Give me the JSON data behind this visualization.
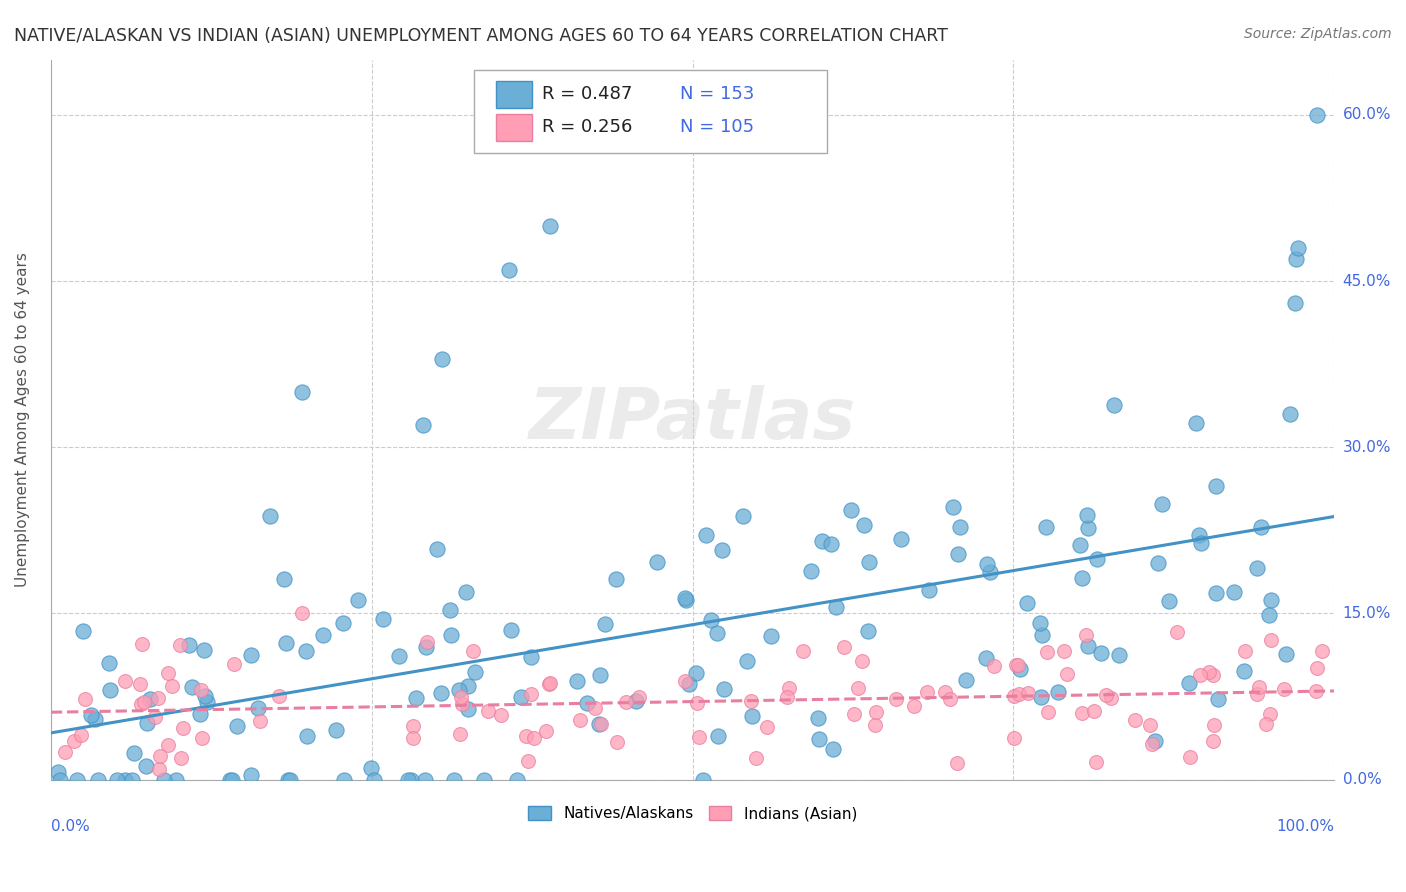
{
  "title": "NATIVE/ALASKAN VS INDIAN (ASIAN) UNEMPLOYMENT AMONG AGES 60 TO 64 YEARS CORRELATION CHART",
  "source": "Source: ZipAtlas.com",
  "ylabel": "Unemployment Among Ages 60 to 64 years",
  "ytick_values": [
    0.0,
    15.0,
    30.0,
    45.0,
    60.0
  ],
  "ytick_labels": [
    "0.0%",
    "15.0%",
    "30.0%",
    "45.0%",
    "60.0%"
  ],
  "watermark": "ZIPatlas",
  "legend_blue_r": "R = 0.487",
  "legend_blue_n": "N = 153",
  "legend_pink_r": "R = 0.256",
  "legend_pink_n": "N = 105",
  "blue_color": "#6baed6",
  "blue_edge": "#4292c6",
  "pink_color": "#ff9eb5",
  "pink_edge": "#e87fa0",
  "blue_line_color": "#4292c6",
  "pink_line_color": "#e87fa0",
  "legend_text_color": "#4169E1",
  "title_color": "#333333",
  "background_color": "#ffffff",
  "grid_color": "#cccccc",
  "axis_color": "#aaaaaa",
  "xlim": [
    0,
    100
  ],
  "ylim": [
    0,
    65
  ],
  "figsize": [
    14.06,
    8.92
  ],
  "dpi": 100,
  "blue_R": 0.487,
  "blue_N": 153,
  "pink_R": 0.256,
  "pink_N": 105
}
